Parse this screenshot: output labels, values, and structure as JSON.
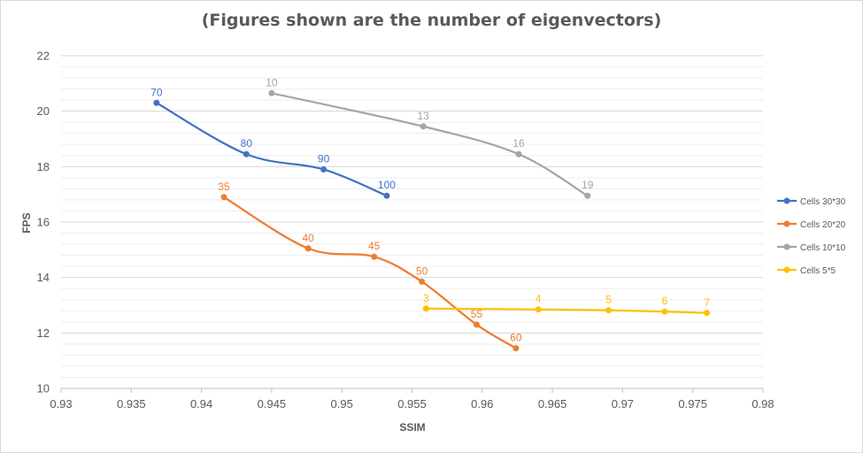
{
  "chart_data": {
    "type": "scatter",
    "title": "(Figures shown are the number of eigenvectors)",
    "xlabel": "SSIM",
    "ylabel": "FPS",
    "xlim": [
      0.93,
      0.98
    ],
    "ylim": [
      10,
      22
    ],
    "xticks": [
      "0.93",
      "0.935",
      "0.94",
      "0.945",
      "0.95",
      "0.955",
      "0.96",
      "0.965",
      "0.97",
      "0.975",
      "0.98"
    ],
    "yticks": [
      "10",
      "12",
      "14",
      "16",
      "18",
      "20",
      "22"
    ],
    "grid": true,
    "legend_position": "right",
    "series": [
      {
        "name": "Cells 30*30",
        "color": "#4472c4",
        "points": [
          {
            "x": 0.9368,
            "y": 20.3,
            "label": "70"
          },
          {
            "x": 0.9432,
            "y": 18.45,
            "label": "80"
          },
          {
            "x": 0.9487,
            "y": 17.9,
            "label": "90"
          },
          {
            "x": 0.9532,
            "y": 16.95,
            "label": "100"
          }
        ]
      },
      {
        "name": "Cells 20*20",
        "color": "#ed7d31",
        "points": [
          {
            "x": 0.9416,
            "y": 16.9,
            "label": "35"
          },
          {
            "x": 0.9476,
            "y": 15.05,
            "label": "40"
          },
          {
            "x": 0.9523,
            "y": 14.75,
            "label": "45"
          },
          {
            "x": 0.9557,
            "y": 13.85,
            "label": "50"
          },
          {
            "x": 0.9596,
            "y": 12.3,
            "label": "55"
          },
          {
            "x": 0.9624,
            "y": 11.45,
            "label": "60"
          }
        ]
      },
      {
        "name": "Cells 10*10",
        "color": "#a5a5a5",
        "points": [
          {
            "x": 0.945,
            "y": 20.65,
            "label": "10"
          },
          {
            "x": 0.9558,
            "y": 19.45,
            "label": "13"
          },
          {
            "x": 0.9626,
            "y": 18.45,
            "label": "16"
          },
          {
            "x": 0.9675,
            "y": 16.95,
            "label": "19"
          }
        ]
      },
      {
        "name": "Cells 5*5",
        "color": "#ffc000",
        "points": [
          {
            "x": 0.956,
            "y": 12.88,
            "label": "3"
          },
          {
            "x": 0.964,
            "y": 12.85,
            "label": "4"
          },
          {
            "x": 0.969,
            "y": 12.82,
            "label": "5"
          },
          {
            "x": 0.973,
            "y": 12.77,
            "label": "6"
          },
          {
            "x": 0.976,
            "y": 12.72,
            "label": "7"
          }
        ]
      }
    ]
  }
}
